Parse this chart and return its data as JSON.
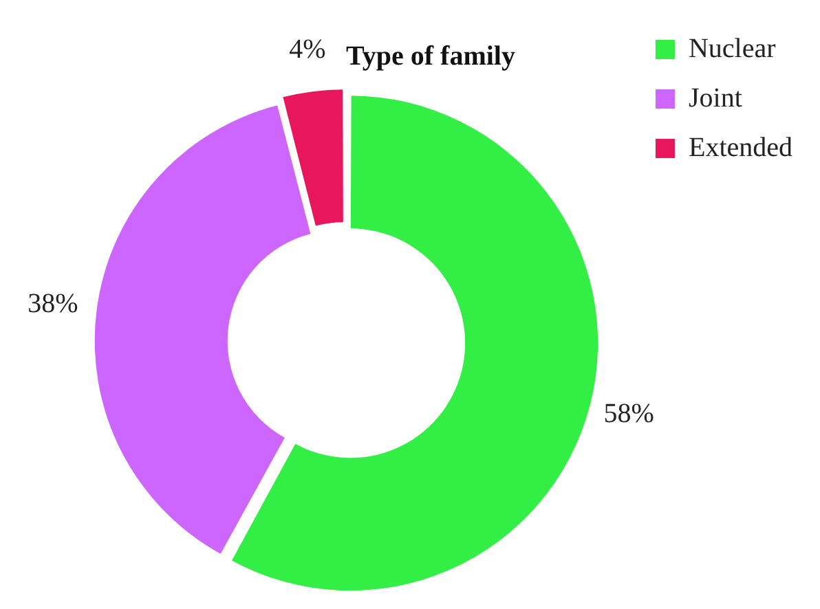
{
  "chart_data": {
    "type": "donut",
    "title": "Type of family",
    "categories": [
      "Nuclear",
      "Joint",
      "Extended"
    ],
    "values": [
      58,
      38,
      4
    ],
    "colors": [
      "#33ee44",
      "#cc66ff",
      "#e8175d"
    ],
    "value_labels": [
      "58%",
      "38%",
      "4%"
    ],
    "legend": "top right"
  }
}
